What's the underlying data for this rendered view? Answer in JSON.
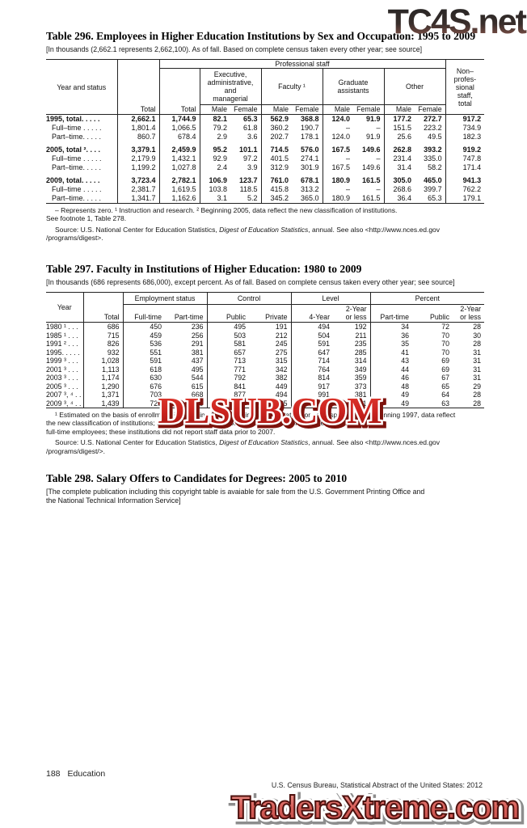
{
  "watermarks": {
    "top": "TC4S.net",
    "middle": "DLSUB.COM",
    "bottom": "TradersXtreme.com"
  },
  "table296": {
    "title": "Table 296. Employees in Higher Education Institutions by Sex and Occupation: 1995 to 2009",
    "note": "[In thousands (2,662.1 represents 2,662,100). As of fall. Based on complete census taken every other year; see source]",
    "header": {
      "col_year": "Year and status",
      "col_total": "Total",
      "prof_staff": "Professional staff",
      "prof_total": "Total",
      "grp_exec": "Executive,\nadministrative, and\nmanagerial",
      "grp_faculty": "Faculty ¹",
      "grp_grad": "Graduate\nassistants",
      "grp_other": "Other",
      "male": "Male",
      "female": "Female",
      "col_nonprof": "Non–\nprofes-\nsional\nstaff,\ntotal"
    },
    "rows": [
      {
        "label": "1995, total. . . . .",
        "bold": true,
        "values": [
          "2,662.1",
          "1,744.9",
          "82.1",
          "65.3",
          "562.9",
          "368.8",
          "124.0",
          "91.9",
          "177.2",
          "272.7",
          "917.2"
        ]
      },
      {
        "label": "Full–time . . . . .",
        "sub": true,
        "values": [
          "1,801.4",
          "1,066.5",
          "79.2",
          "61.8",
          "360.2",
          "190.7",
          "–",
          "–",
          "151.5",
          "223.2",
          "734.9"
        ]
      },
      {
        "label": "Part–time. . . . .",
        "sub": true,
        "values": [
          "860.7",
          "678.4",
          "2.9",
          "3.6",
          "202.7",
          "178.1",
          "124.0",
          "91.9",
          "25.6",
          "49.5",
          "182.3"
        ]
      },
      {
        "label": "2005, total ². . . .",
        "bold": true,
        "values": [
          "3,379.1",
          "2,459.9",
          "95.2",
          "101.1",
          "714.5",
          "576.0",
          "167.5",
          "149.6",
          "262.8",
          "393.2",
          "919.2"
        ]
      },
      {
        "label": "Full–time . . . . .",
        "sub": true,
        "values": [
          "2,179.9",
          "1,432.1",
          "92.9",
          "97.2",
          "401.5",
          "274.1",
          "–",
          "–",
          "231.4",
          "335.0",
          "747.8"
        ]
      },
      {
        "label": "Part–time. . . . .",
        "sub": true,
        "values": [
          "1,199.2",
          "1,027.8",
          "2.4",
          "3.9",
          "312.9",
          "301.9",
          "167.5",
          "149.6",
          "31.4",
          "58.2",
          "171.4"
        ]
      },
      {
        "label": "2009, total. . . . .",
        "bold": true,
        "values": [
          "3,723.4",
          "2,782.1",
          "106.9",
          "123.7",
          "761.0",
          "678.1",
          "180.9",
          "161.5",
          "305.0",
          "465.0",
          "941.3"
        ]
      },
      {
        "label": "Full–time . . . . .",
        "sub": true,
        "values": [
          "2,381.7",
          "1,619.5",
          "103.8",
          "118.5",
          "415.8",
          "313.2",
          "–",
          "–",
          "268.6",
          "399.7",
          "762.2"
        ]
      },
      {
        "label": "Part–time. . . . .",
        "sub": true,
        "values": [
          "1,341.7",
          "1,162.6",
          "3.1",
          "5.2",
          "345.2",
          "365.0",
          "180.9",
          "161.5",
          "36.4",
          "65.3",
          "179.1"
        ]
      }
    ],
    "footnote": "– Represents zero. ¹ Instruction and research. ² Beginning 2005, data reflect the new classification of institutions.\nSee footnote 1, Table 278.",
    "source_prefix": "Source: U.S. National Center for Education Statistics, ",
    "source_italic": "Digest of Education Statistics",
    "source_suffix": ", annual. See also <http://www.nces.ed.gov\n/programs/digest>."
  },
  "table297": {
    "title": "Table 297. Faculty in Institutions of Higher Education: 1980 to 2009",
    "note": "[In thousands (686 represents 686,000), except percent. As of fall. Based on complete census taken every other year; see source]",
    "header": {
      "col_year": "Year",
      "col_total": "Total",
      "grp_employment": "Employment status",
      "grp_control": "Control",
      "grp_level": "Level",
      "grp_percent": "Percent",
      "full_time": "Full-time",
      "part_time": "Part-time",
      "public": "Public",
      "private": "Private",
      "four_year": "4-Year",
      "two_year": "2-Year\nor less",
      "pct_part_time": "Part-time",
      "pct_public": "Public",
      "pct_two_year": "2-Year\nor less"
    },
    "rows": [
      {
        "label": "1980 ¹ . . .",
        "values": [
          "686",
          "450",
          "236",
          "495",
          "191",
          "494",
          "192",
          "34",
          "72",
          "28"
        ]
      },
      {
        "label": "1985 ¹ . . .",
        "values": [
          "715",
          "459",
          "256",
          "503",
          "212",
          "504",
          "211",
          "36",
          "70",
          "30"
        ]
      },
      {
        "label": "1991 ² . . .",
        "values": [
          "826",
          "536",
          "291",
          "581",
          "245",
          "591",
          "235",
          "35",
          "70",
          "28"
        ]
      },
      {
        "label": "1995. . . . .",
        "values": [
          "932",
          "551",
          "381",
          "657",
          "275",
          "647",
          "285",
          "41",
          "70",
          "31"
        ]
      },
      {
        "label": "1999 ³ . . .",
        "values": [
          "1,028",
          "591",
          "437",
          "713",
          "315",
          "714",
          "314",
          "43",
          "69",
          "31"
        ]
      },
      {
        "label": "2001 ³ . . .",
        "values": [
          "1,113",
          "618",
          "495",
          "771",
          "342",
          "764",
          "349",
          "44",
          "69",
          "31"
        ]
      },
      {
        "label": "2003 ³ . . .",
        "values": [
          "1,174",
          "630",
          "544",
          "792",
          "382",
          "814",
          "359",
          "46",
          "67",
          "31"
        ]
      },
      {
        "label": "2005 ³ . . .",
        "values": [
          "1,290",
          "676",
          "615",
          "841",
          "449",
          "917",
          "373",
          "48",
          "65",
          "29"
        ]
      },
      {
        "label": "2007 ³, ⁴ . .",
        "values": [
          "1,371",
          "703",
          "668",
          "877",
          "494",
          "991",
          "381",
          "49",
          "64",
          "28"
        ]
      },
      {
        "label": "2009 ³, ⁴ . .",
        "values": [
          "1,439",
          "729",
          "710",
          "914",
          "525",
          "1,038",
          "401",
          "49",
          "63",
          "28"
        ]
      }
    ],
    "footnote": "¹ Estimated on the basis of enrollment. ² Beginning 1991, data include imputation for nonrespondents. ³ Beginning 1997, data reflect\nthe new classification of institutions; see footnote 1, Table 278. ⁴ Includes institutions with fewer than 15\nfull-time employees; these institutions did not report staff data prior to 2007.",
    "source_prefix": "Source: U.S. National Center for Education Statistics, ",
    "source_italic": "Digest of Education Statistics",
    "source_suffix": ", annual. See also <http://www.nces.ed.gov\n/programs/digest/>."
  },
  "table298": {
    "title": "Table 298. Salary Offers to Candidates for Degrees: 2005 to 2010",
    "note": "[The complete publication including this copyright table is avaiable for sale from the U.S. Government Printing Office and\nthe National Technical Information Service]"
  },
  "footer": {
    "page_number": "188",
    "section": "Education",
    "source_line": "U.S. Census Bureau, Statistical Abstract of the United States: 2012"
  }
}
